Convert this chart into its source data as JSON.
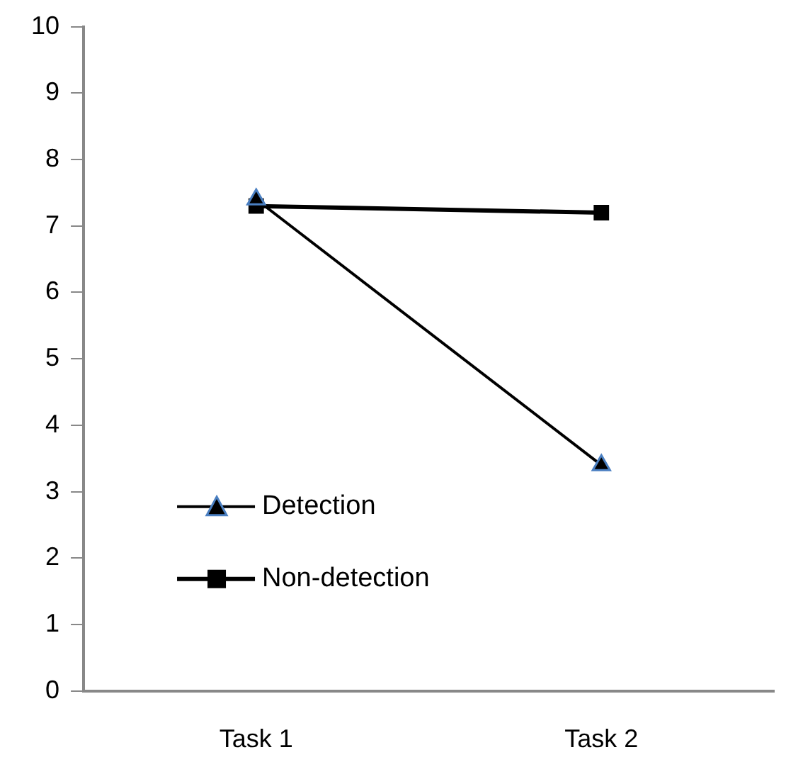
{
  "chart_data": {
    "type": "line",
    "categories": [
      "Task 1",
      "Task 2"
    ],
    "series": [
      {
        "name": "Detection",
        "color": "#000000",
        "values": [
          7.4,
          3.4
        ],
        "marker": "triangle"
      },
      {
        "name": "Non-detection",
        "color": "#000000",
        "values": [
          7.3,
          7.2
        ],
        "marker": "square"
      }
    ],
    "ylim": [
      0,
      10
    ],
    "yticks": [
      0,
      1,
      2,
      3,
      4,
      5,
      6,
      7,
      8,
      9,
      10
    ],
    "grid": false,
    "legend": "bottom left",
    "line_style": "solid"
  }
}
